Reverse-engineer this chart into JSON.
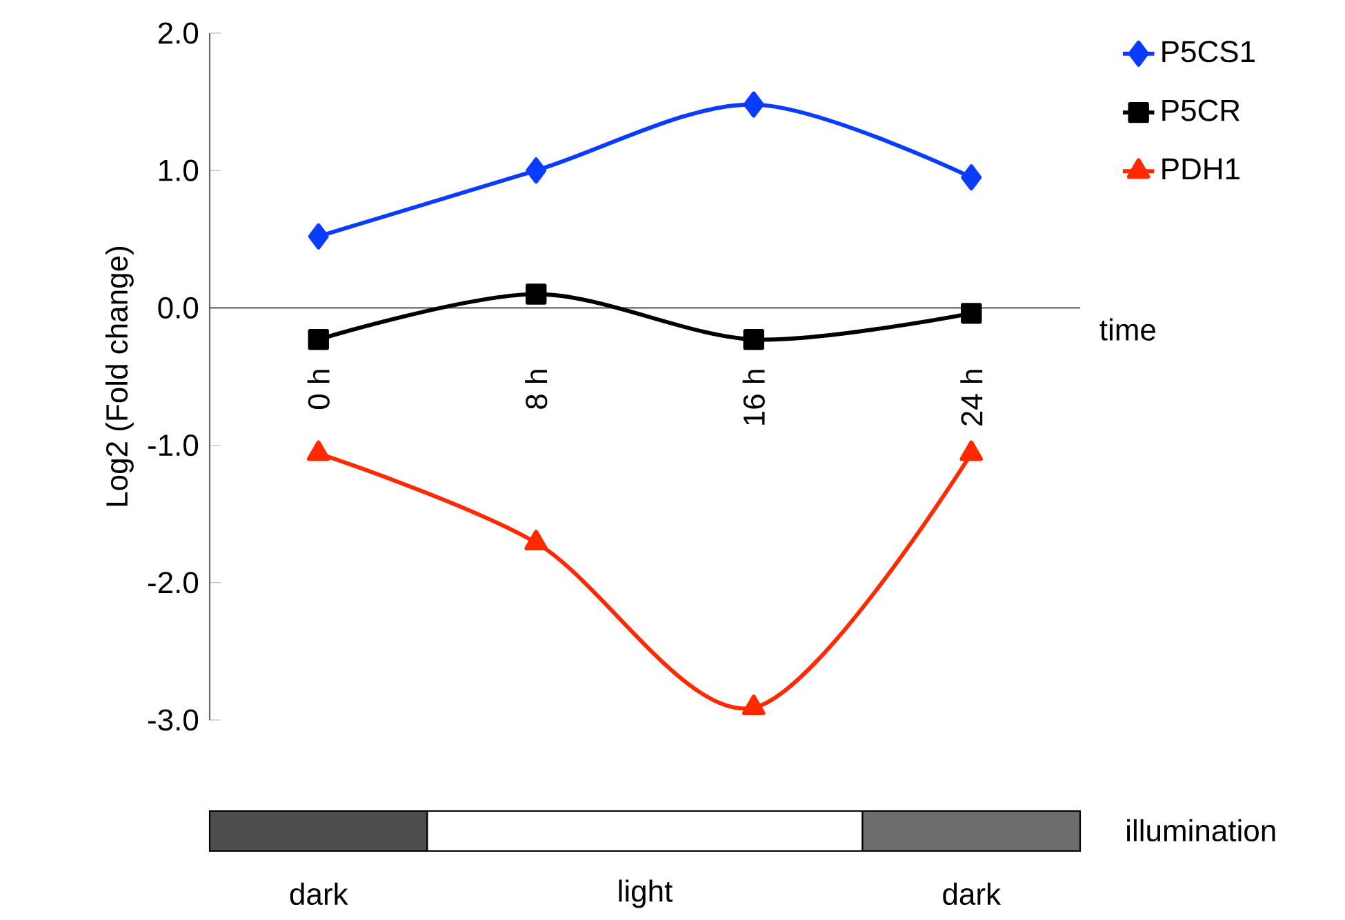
{
  "chart_data": {
    "type": "line",
    "ylabel": "Log2 (Fold change)",
    "xlabel": "time",
    "categories": [
      "0 h",
      "8 h",
      "16 h",
      "24 h"
    ],
    "series": [
      {
        "name": "P5CS1",
        "color": "#0a3cff",
        "marker": "diamond",
        "values": [
          0.52,
          1.0,
          1.48,
          0.95
        ]
      },
      {
        "name": "P5CR",
        "color": "#000000",
        "marker": "square",
        "values": [
          -0.23,
          0.1,
          -0.23,
          -0.04
        ]
      },
      {
        "name": "PDH1",
        "color": "#ff2a00",
        "marker": "triangle",
        "values": [
          -1.06,
          -1.71,
          -2.91,
          -1.06
        ]
      }
    ],
    "ylim": [
      -3.0,
      2.0
    ],
    "yticks": [
      {
        "value": -3,
        "label": "-3.0"
      },
      {
        "value": -2,
        "label": "-2.0"
      },
      {
        "value": -1,
        "label": "-1.0"
      },
      {
        "value": 0,
        "label": "0.0"
      },
      {
        "value": 1,
        "label": "1.0"
      },
      {
        "value": 2,
        "label": "2.0"
      }
    ],
    "legend": "top right",
    "grid": false,
    "annotations": [
      "illumination",
      "dark",
      "light",
      "dark"
    ]
  }
}
